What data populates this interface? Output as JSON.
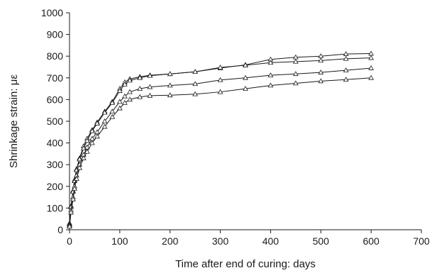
{
  "chart_data": {
    "type": "line",
    "xlabel": "Time after end of curing: days",
    "ylabel": "Shrinkage strain: με",
    "xlim": [
      0,
      700
    ],
    "ylim": [
      0,
      1000
    ],
    "xticks": [
      0,
      100,
      200,
      300,
      400,
      500,
      600,
      700
    ],
    "yticks": [
      0,
      100,
      200,
      300,
      400,
      500,
      600,
      700,
      800,
      900,
      1000
    ],
    "grid": false,
    "marker": "open-triangle",
    "line_color": "#1a1a1a",
    "series": [
      {
        "points": [
          [
            0,
            30
          ],
          [
            3,
            110
          ],
          [
            7,
            180
          ],
          [
            10,
            230
          ],
          [
            14,
            280
          ],
          [
            20,
            330
          ],
          [
            28,
            385
          ],
          [
            35,
            420
          ],
          [
            45,
            460
          ],
          [
            55,
            495
          ],
          [
            70,
            545
          ],
          [
            85,
            590
          ],
          [
            100,
            650
          ],
          [
            110,
            680
          ],
          [
            120,
            695
          ],
          [
            140,
            705
          ],
          [
            160,
            712
          ],
          [
            200,
            718
          ],
          [
            250,
            728
          ],
          [
            300,
            745
          ],
          [
            350,
            760
          ],
          [
            400,
            785
          ],
          [
            450,
            795
          ],
          [
            500,
            800
          ],
          [
            550,
            810
          ],
          [
            600,
            812
          ]
        ]
      },
      {
        "points": [
          [
            0,
            25
          ],
          [
            3,
            105
          ],
          [
            7,
            175
          ],
          [
            10,
            225
          ],
          [
            14,
            275
          ],
          [
            20,
            325
          ],
          [
            28,
            375
          ],
          [
            35,
            410
          ],
          [
            45,
            455
          ],
          [
            55,
            490
          ],
          [
            70,
            540
          ],
          [
            85,
            585
          ],
          [
            100,
            640
          ],
          [
            110,
            670
          ],
          [
            120,
            688
          ],
          [
            140,
            700
          ],
          [
            160,
            710
          ],
          [
            200,
            718
          ],
          [
            250,
            728
          ],
          [
            300,
            748
          ],
          [
            350,
            758
          ],
          [
            400,
            770
          ],
          [
            450,
            775
          ],
          [
            500,
            780
          ],
          [
            550,
            788
          ],
          [
            600,
            792
          ]
        ]
      },
      {
        "points": [
          [
            0,
            20
          ],
          [
            3,
            90
          ],
          [
            7,
            150
          ],
          [
            10,
            200
          ],
          [
            14,
            250
          ],
          [
            20,
            300
          ],
          [
            28,
            345
          ],
          [
            35,
            380
          ],
          [
            45,
            420
          ],
          [
            55,
            450
          ],
          [
            70,
            500
          ],
          [
            85,
            545
          ],
          [
            100,
            590
          ],
          [
            110,
            615
          ],
          [
            120,
            635
          ],
          [
            140,
            650
          ],
          [
            160,
            658
          ],
          [
            200,
            665
          ],
          [
            250,
            672
          ],
          [
            300,
            690
          ],
          [
            350,
            700
          ],
          [
            400,
            712
          ],
          [
            450,
            718
          ],
          [
            500,
            725
          ],
          [
            550,
            735
          ],
          [
            600,
            745
          ]
        ]
      },
      {
        "points": [
          [
            0,
            15
          ],
          [
            3,
            80
          ],
          [
            7,
            140
          ],
          [
            10,
            190
          ],
          [
            14,
            235
          ],
          [
            20,
            285
          ],
          [
            28,
            330
          ],
          [
            35,
            360
          ],
          [
            45,
            400
          ],
          [
            55,
            430
          ],
          [
            70,
            475
          ],
          [
            85,
            520
          ],
          [
            100,
            560
          ],
          [
            110,
            585
          ],
          [
            120,
            600
          ],
          [
            140,
            612
          ],
          [
            160,
            618
          ],
          [
            200,
            620
          ],
          [
            250,
            625
          ],
          [
            300,
            635
          ],
          [
            350,
            650
          ],
          [
            400,
            665
          ],
          [
            450,
            675
          ],
          [
            500,
            685
          ],
          [
            550,
            692
          ],
          [
            600,
            700
          ]
        ]
      }
    ]
  }
}
